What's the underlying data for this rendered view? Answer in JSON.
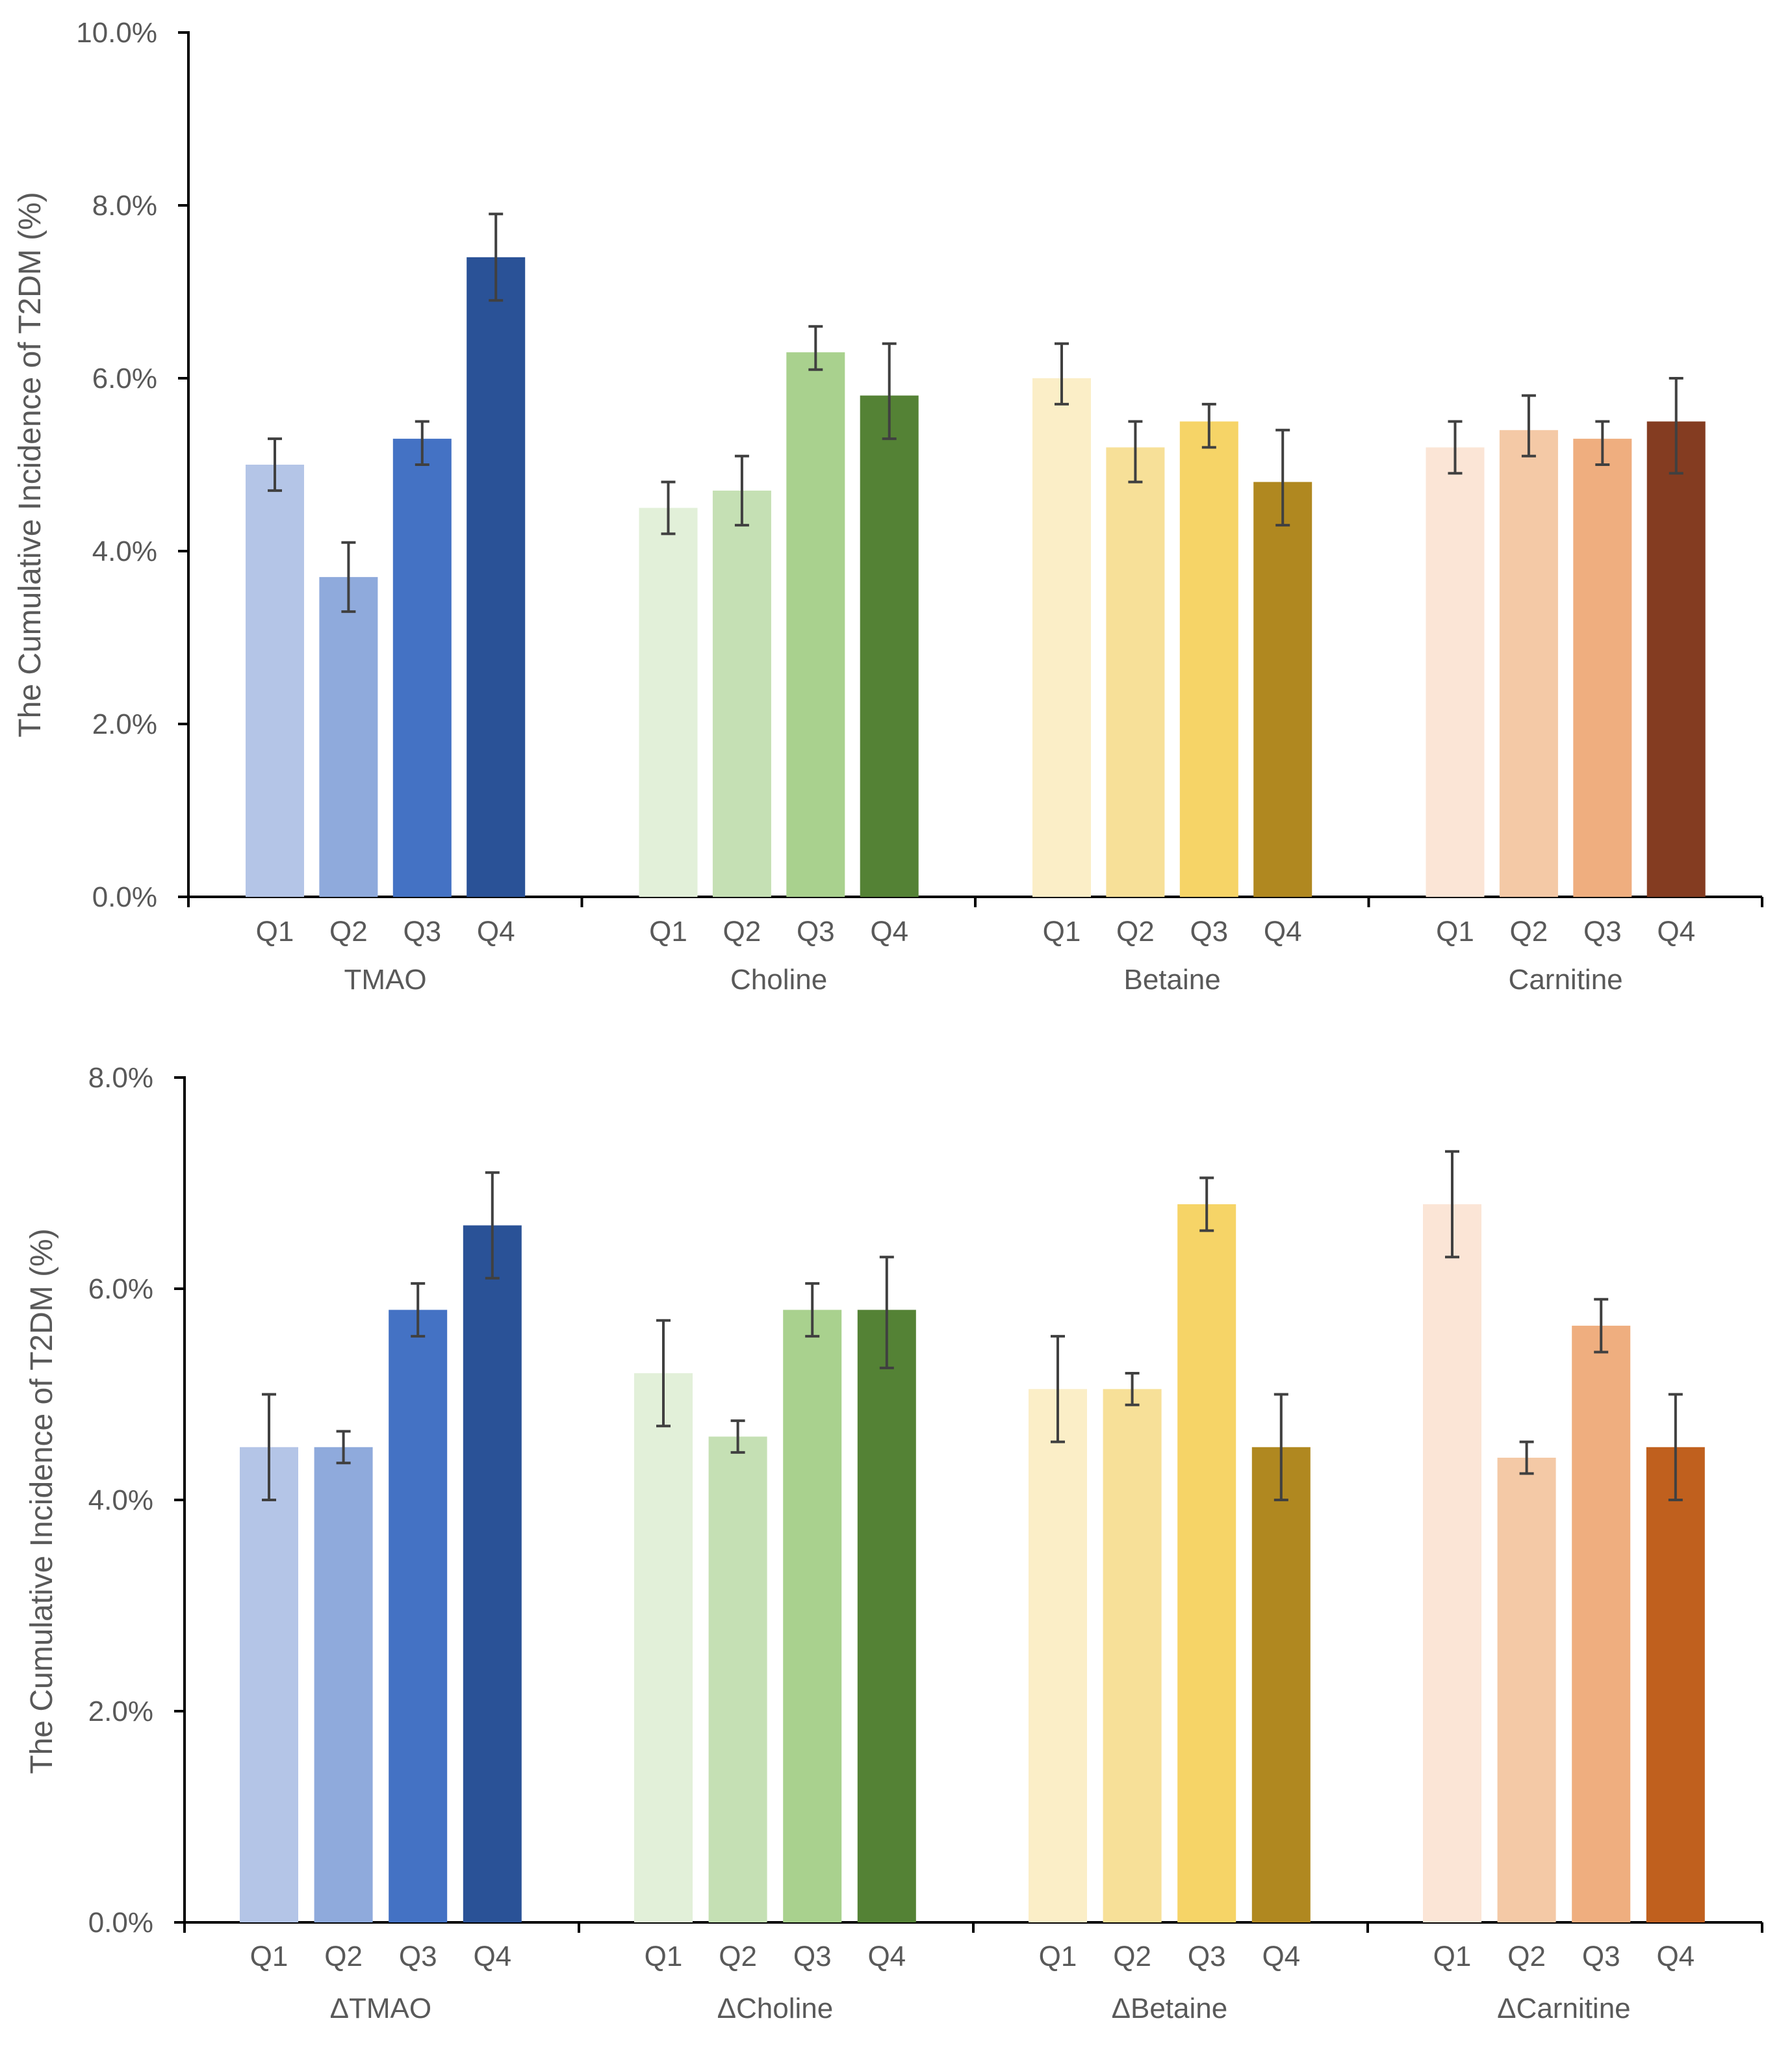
{
  "chart_data": [
    {
      "type": "bar",
      "ylabel": "The Cumulative Incidence of T2DM (%)",
      "ylim": [
        0,
        10
      ],
      "yticks": [
        0,
        2,
        4,
        6,
        8,
        10
      ],
      "ytick_labels": [
        "0.0%",
        "2.0%",
        "4.0%",
        "6.0%",
        "8.0%",
        "10.0%"
      ],
      "groups": [
        {
          "name": "TMAO",
          "categories": [
            "Q1",
            "Q2",
            "Q3",
            "Q4"
          ],
          "values": [
            5.0,
            3.7,
            5.3,
            7.4
          ],
          "err_low": [
            4.7,
            3.3,
            5.0,
            6.9
          ],
          "err_high": [
            5.3,
            4.1,
            5.5,
            7.9
          ],
          "colors": [
            "#b4c5e7",
            "#8faadc",
            "#4472c4",
            "#2a5297"
          ]
        },
        {
          "name": "Choline",
          "categories": [
            "Q1",
            "Q2",
            "Q3",
            "Q4"
          ],
          "values": [
            4.5,
            4.7,
            6.3,
            5.8
          ],
          "err_low": [
            4.2,
            4.3,
            6.1,
            5.3
          ],
          "err_high": [
            4.8,
            5.1,
            6.6,
            6.4
          ],
          "colors": [
            "#e2f0d9",
            "#c5e0b4",
            "#a9d18e",
            "#548235"
          ]
        },
        {
          "name": "Betaine",
          "categories": [
            "Q1",
            "Q2",
            "Q3",
            "Q4"
          ],
          "values": [
            6.0,
            5.2,
            5.5,
            4.8
          ],
          "err_low": [
            5.7,
            4.8,
            5.2,
            4.3
          ],
          "err_high": [
            6.4,
            5.5,
            5.7,
            5.4
          ],
          "colors": [
            "#fbeec7",
            "#f7e098",
            "#f6d467",
            "#b08820"
          ]
        },
        {
          "name": "Carnitine",
          "categories": [
            "Q1",
            "Q2",
            "Q3",
            "Q4"
          ],
          "values": [
            5.2,
            5.4,
            5.3,
            5.5
          ],
          "err_low": [
            4.9,
            5.1,
            5.0,
            4.9
          ],
          "err_high": [
            5.5,
            5.8,
            5.5,
            6.0
          ],
          "colors": [
            "#fbe5d6",
            "#f4c9a6",
            "#efae7f",
            "#843c21"
          ]
        }
      ]
    },
    {
      "type": "bar",
      "ylabel": "The Cumulative Incidence of T2DM (%)",
      "ylim": [
        0,
        8
      ],
      "yticks": [
        0,
        2,
        4,
        6,
        8
      ],
      "ytick_labels": [
        "0.0%",
        "2.0%",
        "4.0%",
        "6.0%",
        "8.0%"
      ],
      "groups": [
        {
          "name": "ΔTMAO",
          "categories": [
            "Q1",
            "Q2",
            "Q3",
            "Q4"
          ],
          "values": [
            4.5,
            4.5,
            5.8,
            6.6
          ],
          "err_low": [
            4.0,
            4.35,
            5.55,
            6.1
          ],
          "err_high": [
            5.0,
            4.65,
            6.05,
            7.1
          ],
          "colors": [
            "#b4c5e7",
            "#8faadc",
            "#4472c4",
            "#2a5297"
          ]
        },
        {
          "name": "ΔCholine",
          "categories": [
            "Q1",
            "Q2",
            "Q3",
            "Q4"
          ],
          "values": [
            5.2,
            4.6,
            5.8,
            5.8
          ],
          "err_low": [
            4.7,
            4.45,
            5.55,
            5.25
          ],
          "err_high": [
            5.7,
            4.75,
            6.05,
            6.3
          ],
          "colors": [
            "#e2f0d9",
            "#c5e0b4",
            "#a9d18e",
            "#548235"
          ]
        },
        {
          "name": "ΔBetaine",
          "categories": [
            "Q1",
            "Q2",
            "Q3",
            "Q4"
          ],
          "values": [
            5.05,
            5.05,
            6.8,
            4.5
          ],
          "err_low": [
            4.55,
            4.9,
            6.55,
            4.0
          ],
          "err_high": [
            5.55,
            5.2,
            7.05,
            5.0
          ],
          "colors": [
            "#fbeec7",
            "#f7e098",
            "#f6d467",
            "#b08820"
          ]
        },
        {
          "name": "ΔCarnitine",
          "categories": [
            "Q1",
            "Q2",
            "Q3",
            "Q4"
          ],
          "values": [
            6.8,
            4.4,
            5.65,
            4.5
          ],
          "err_low": [
            6.3,
            4.25,
            5.4,
            4.0
          ],
          "err_high": [
            7.3,
            4.55,
            5.9,
            5.0
          ],
          "colors": [
            "#fbe5d6",
            "#f4c9a6",
            "#efae7f",
            "#c0601e"
          ]
        }
      ]
    }
  ]
}
